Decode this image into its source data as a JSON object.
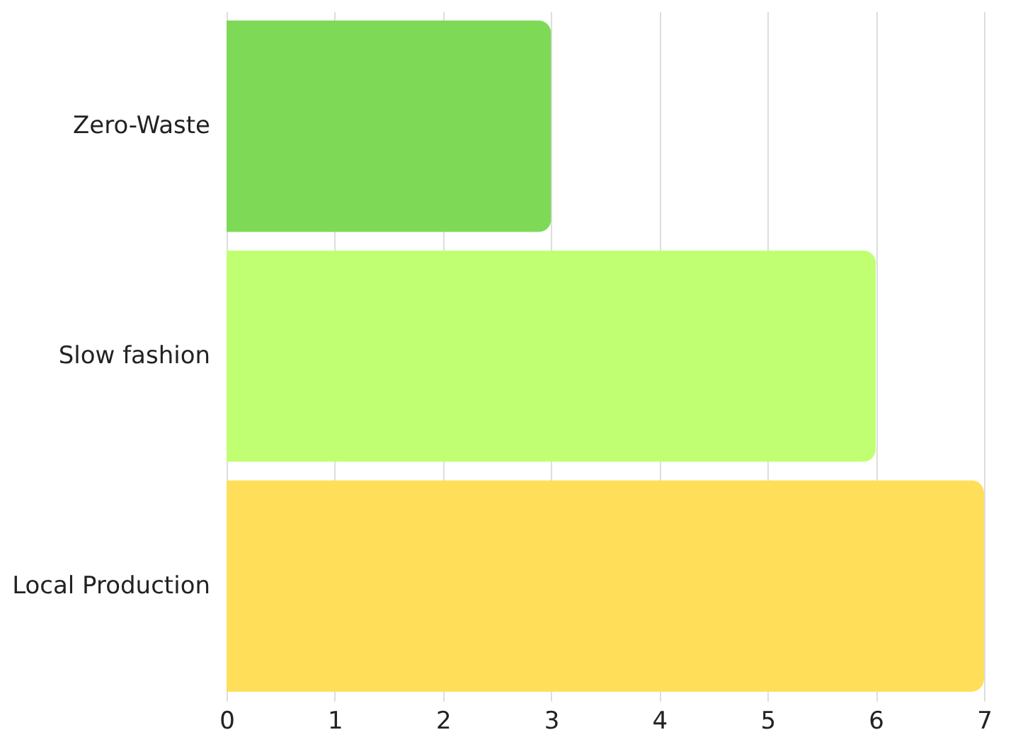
{
  "chart_data": {
    "type": "bar",
    "orientation": "horizontal",
    "categories": [
      "Zero-Waste",
      "Slow fashion",
      "Local Production"
    ],
    "values": [
      3,
      6,
      7
    ],
    "colors": [
      "#7ed957",
      "#c1ff72",
      "#ffde59"
    ],
    "xlim": [
      0,
      7
    ],
    "xticks": [
      0,
      1,
      2,
      3,
      4,
      5,
      6,
      7
    ],
    "grid": "x"
  }
}
